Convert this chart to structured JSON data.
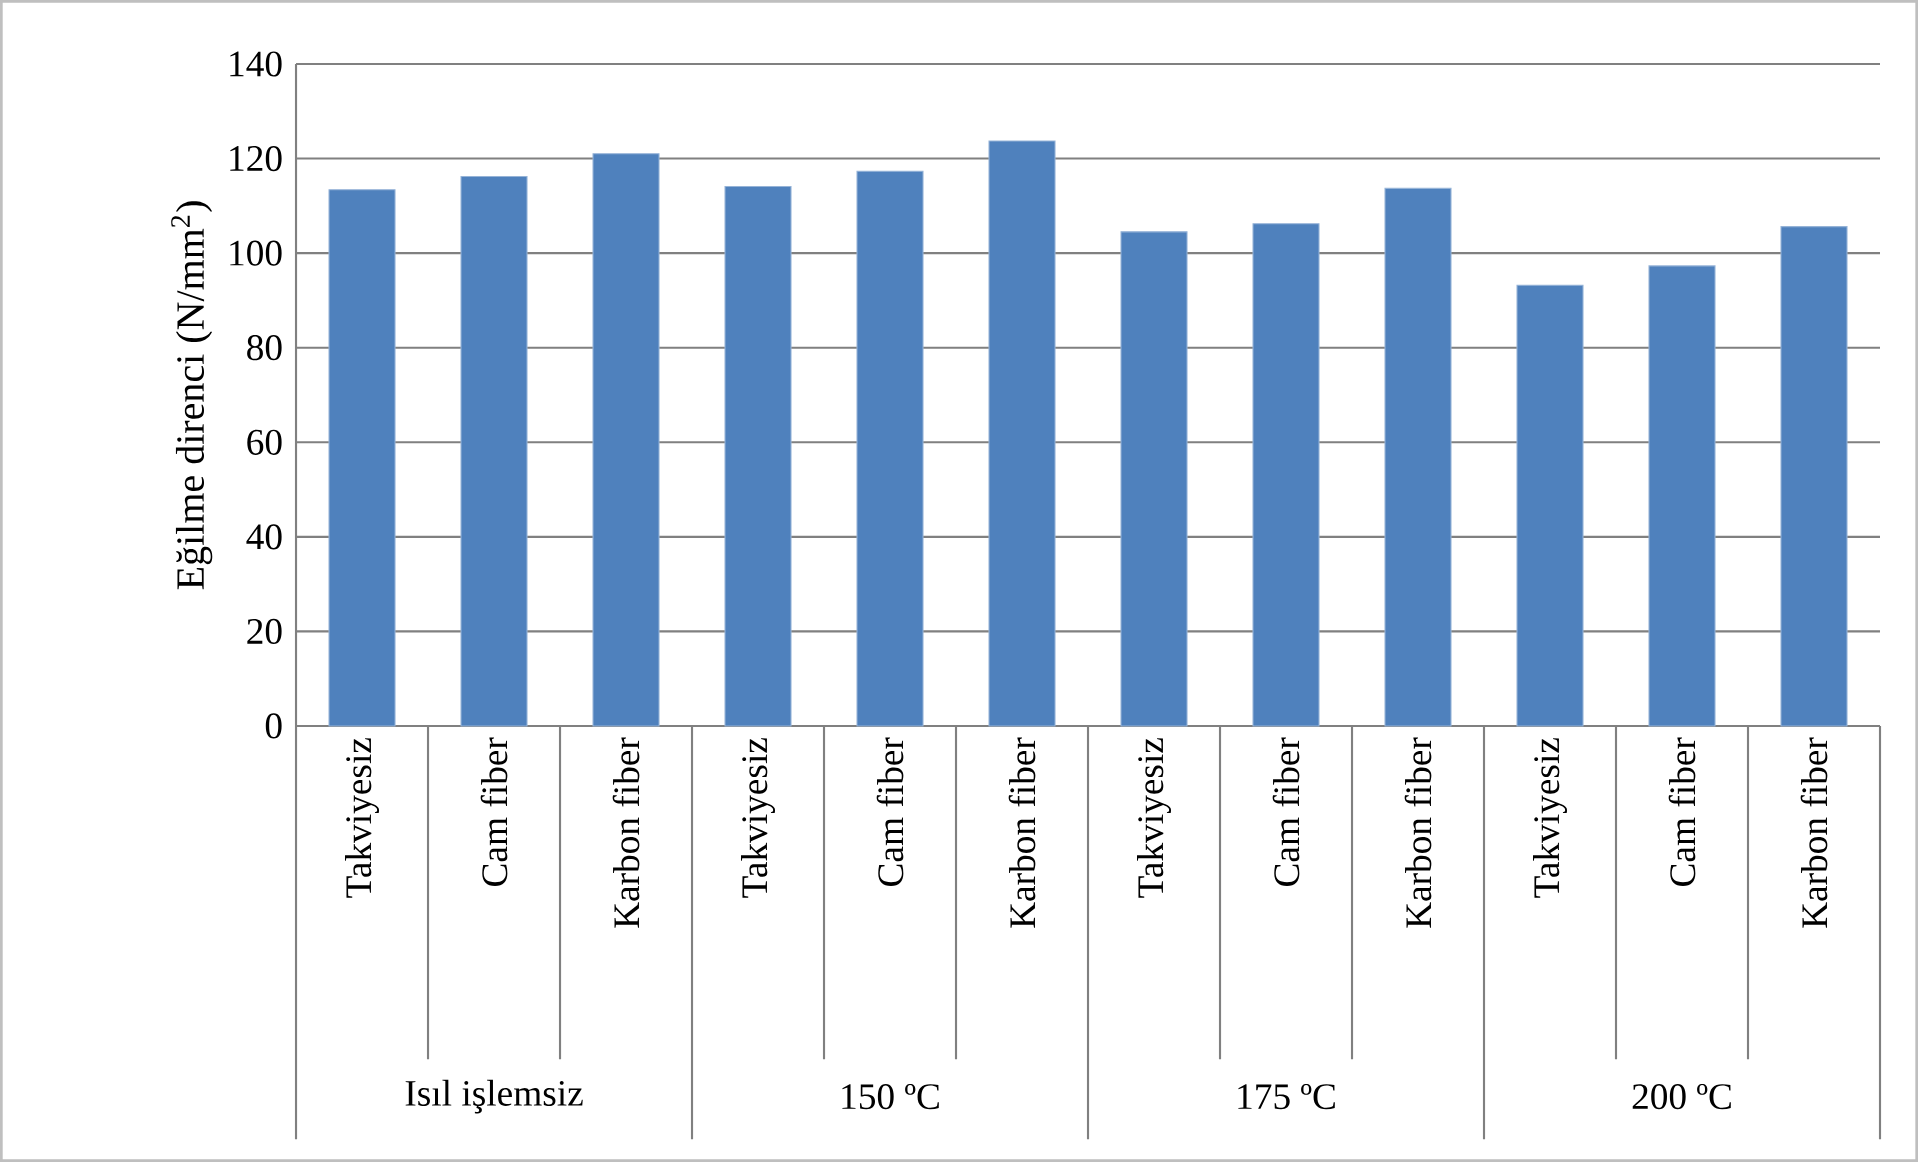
{
  "chart_data": {
    "type": "bar",
    "ylabel": "Eğilme direnci (N/mm$^{2}$)",
    "categories": [
      "Takviyesiz",
      "Cam fiber",
      "Karbon fiber",
      "Takviyesiz",
      "Cam fiber",
      "Karbon fiber",
      "Takviyesiz",
      "Cam fiber",
      "Karbon fiber",
      "Takviyesiz",
      "Cam fiber",
      "Karbon fiber"
    ],
    "values": [
      113.4,
      116.2,
      121,
      114.1,
      117.3,
      123.7,
      104.5,
      106.2,
      113.7,
      93.2,
      97.3,
      105.6
    ],
    "color": "#4f81bd",
    "ylim": [
      0,
      140
    ],
    "yticks": [
      0,
      20,
      40,
      60,
      80,
      100,
      120,
      140
    ],
    "grid": "y",
    "annotations": [
      "Isıl işlemsiz",
      "150 ºC",
      "175 ºC",
      "200 ºC"
    ]
  }
}
